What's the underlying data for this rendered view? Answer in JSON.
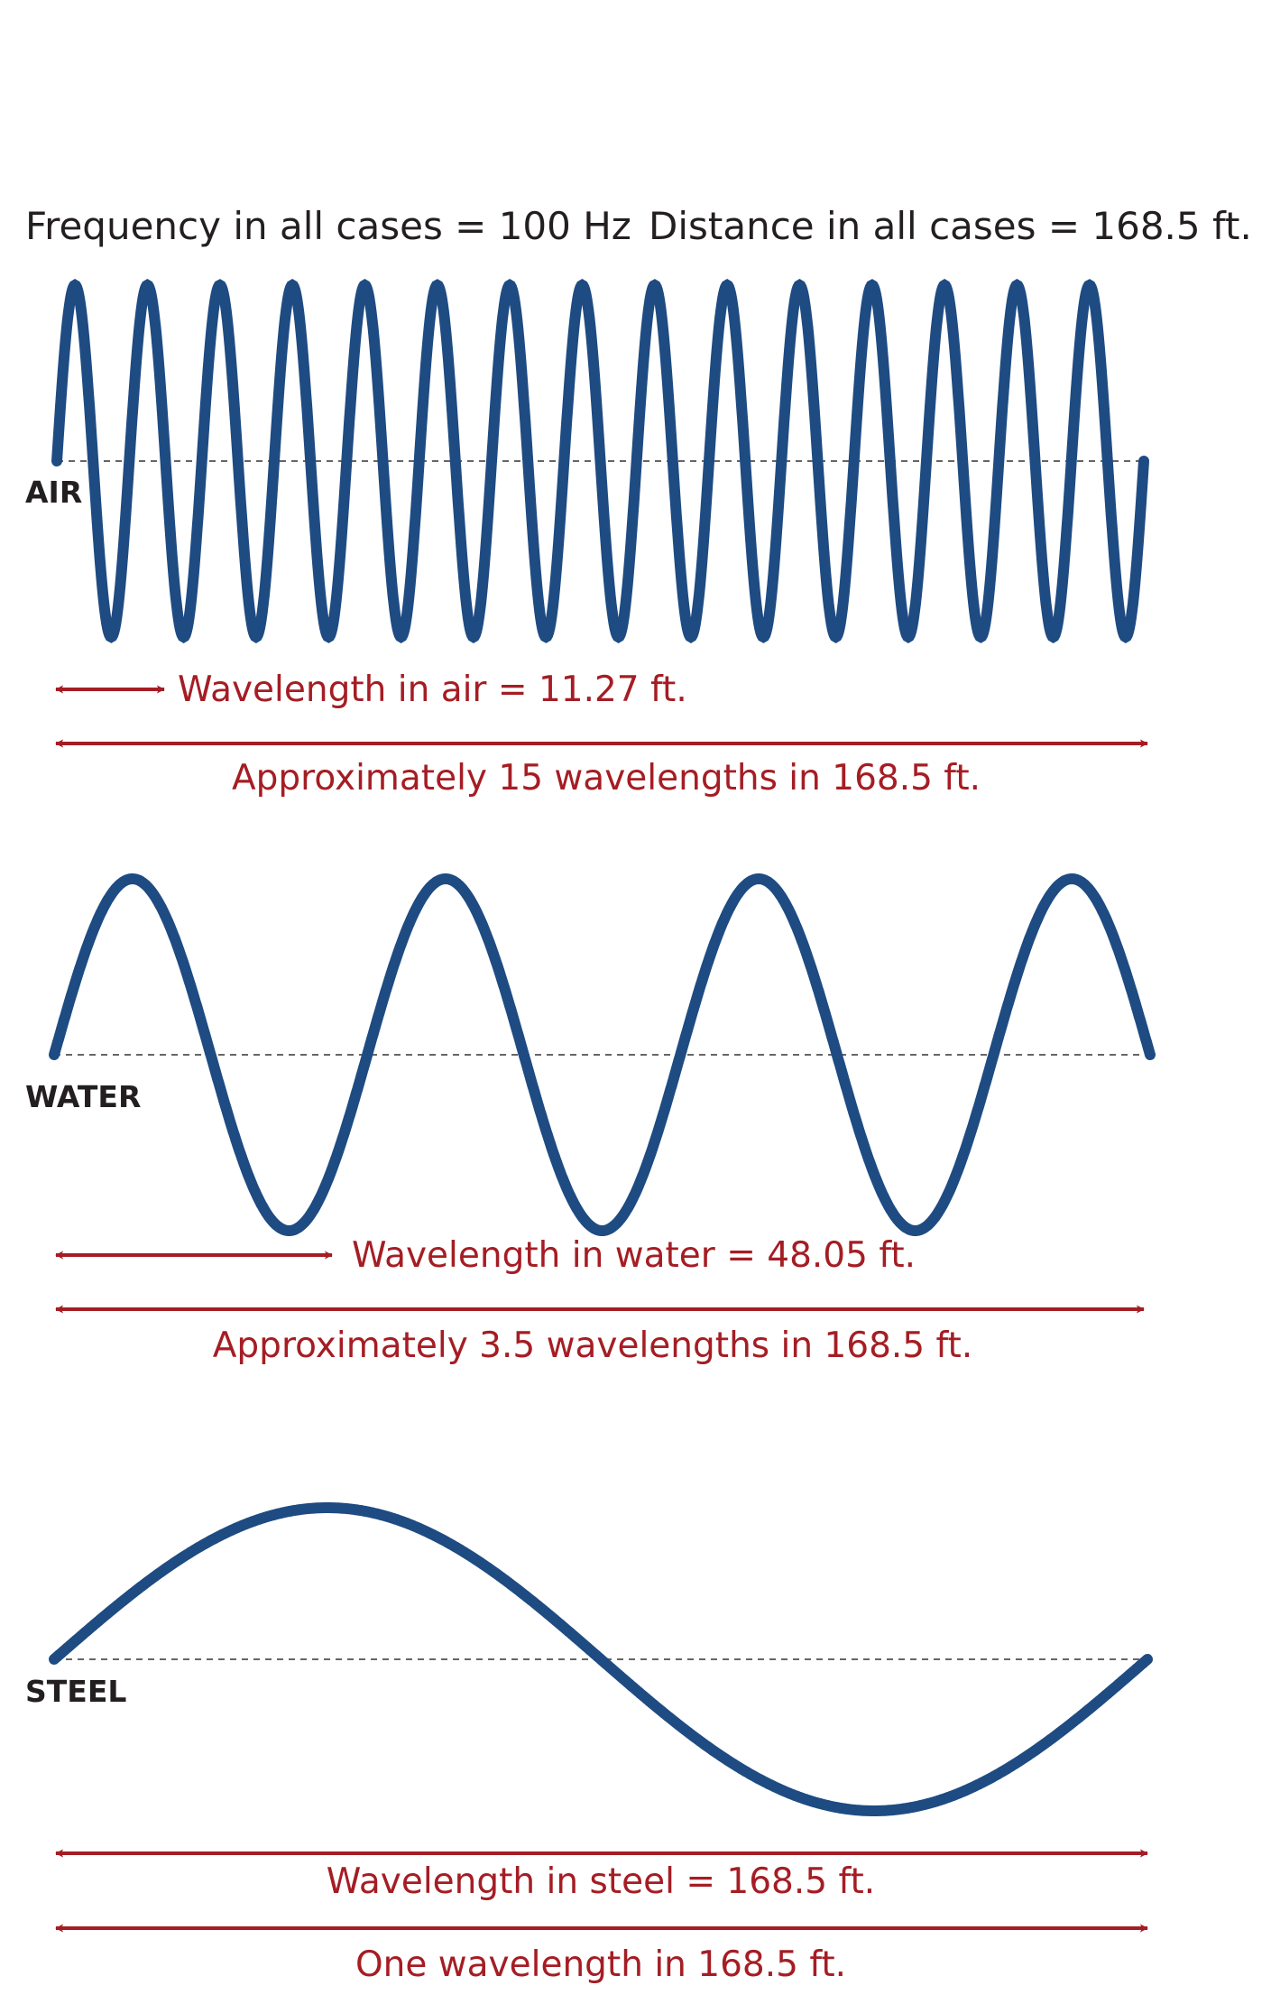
{
  "header": {
    "frequency": "Frequency in all cases = 100 Hz",
    "distance": "Distance in all cases = 168.5 ft."
  },
  "panels": [
    {
      "label": "AIR",
      "wavelength": "Wavelength in air = 11.27 ft.",
      "span": "Approximately 15 wavelengths in 168.5 ft."
    },
    {
      "label": "WATER",
      "wavelength": "Wavelength in water = 48.05 ft.",
      "span": "Approximately 3.5 wavelengths in 168.5 ft."
    },
    {
      "label": "STEEL",
      "wavelength": "Wavelength in steel = 168.5  ft.",
      "span": "One wavelength in 168.5 ft."
    }
  ]
}
